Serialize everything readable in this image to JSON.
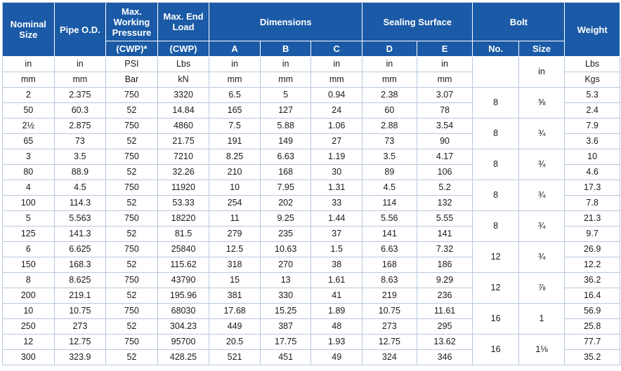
{
  "header": {
    "nominal_size": "Nominal Size",
    "pipe_od": "Pipe O.D.",
    "max_working_pressure": "Max. Working Pressure",
    "cwp_star": "(CWP)*",
    "max_end_load": "Max. End Load",
    "cwp": "(CWP)",
    "dimensions": "Dimensions",
    "sealing_surface": "Sealing Surface",
    "bolt": "Bolt",
    "weight": "Weight",
    "dim_a": "A",
    "dim_b": "B",
    "dim_c": "C",
    "seal_d": "D",
    "seal_e": "E",
    "bolt_no": "No.",
    "bolt_size": "Size"
  },
  "units_imperial": [
    "in",
    "in",
    "PSI",
    "Lbs",
    "in",
    "in",
    "in",
    "in",
    "in",
    "Lbs"
  ],
  "units_metric": [
    "mm",
    "mm",
    "Bar",
    "kN",
    "mm",
    "mm",
    "mm",
    "mm",
    "mm",
    "Kgs"
  ],
  "bolt_size_unit": "in",
  "rows": [
    {
      "imperial": [
        "2",
        "2.375",
        "750",
        "3320",
        "6.5",
        "5",
        "0.94",
        "2.38",
        "3.07",
        "5.3"
      ],
      "metric": [
        "50",
        "60.3",
        "52",
        "14.84",
        "165",
        "127",
        "24",
        "60",
        "78",
        "2.4"
      ],
      "bolt_no": "8",
      "bolt_size": "⅝"
    },
    {
      "imperial": [
        "2½",
        "2.875",
        "750",
        "4860",
        "7.5",
        "5.88",
        "1.06",
        "2.88",
        "3.54",
        "7.9"
      ],
      "metric": [
        "65",
        "73",
        "52",
        "21.75",
        "191",
        "149",
        "27",
        "73",
        "90",
        "3.6"
      ],
      "bolt_no": "8",
      "bolt_size": "¾"
    },
    {
      "imperial": [
        "3",
        "3.5",
        "750",
        "7210",
        "8.25",
        "6.63",
        "1.19",
        "3.5",
        "4.17",
        "10"
      ],
      "metric": [
        "80",
        "88.9",
        "52",
        "32.26",
        "210",
        "168",
        "30",
        "89",
        "106",
        "4.6"
      ],
      "bolt_no": "8",
      "bolt_size": "¾"
    },
    {
      "imperial": [
        "4",
        "4.5",
        "750",
        "11920",
        "10",
        "7.95",
        "1.31",
        "4.5",
        "5.2",
        "17.3"
      ],
      "metric": [
        "100",
        "114.3",
        "52",
        "53.33",
        "254",
        "202",
        "33",
        "114",
        "132",
        "7.8"
      ],
      "bolt_no": "8",
      "bolt_size": "¾"
    },
    {
      "imperial": [
        "5",
        "5.563",
        "750",
        "18220",
        "11",
        "9.25",
        "1.44",
        "5.56",
        "5.55",
        "21.3"
      ],
      "metric": [
        "125",
        "141.3",
        "52",
        "81.5",
        "279",
        "235",
        "37",
        "141",
        "141",
        "9.7"
      ],
      "bolt_no": "8",
      "bolt_size": "¾"
    },
    {
      "imperial": [
        "6",
        "6.625",
        "750",
        "25840",
        "12.5",
        "10.63",
        "1.5",
        "6.63",
        "7.32",
        "26.9"
      ],
      "metric": [
        "150",
        "168.3",
        "52",
        "115.62",
        "318",
        "270",
        "38",
        "168",
        "186",
        "12.2"
      ],
      "bolt_no": "12",
      "bolt_size": "¾"
    },
    {
      "imperial": [
        "8",
        "8.625",
        "750",
        "43790",
        "15",
        "13",
        "1.61",
        "8.63",
        "9.29",
        "36.2"
      ],
      "metric": [
        "200",
        "219.1",
        "52",
        "195.96",
        "381",
        "330",
        "41",
        "219",
        "236",
        "16.4"
      ],
      "bolt_no": "12",
      "bolt_size": "⅞"
    },
    {
      "imperial": [
        "10",
        "10.75",
        "750",
        "68030",
        "17.68",
        "15.25",
        "1.89",
        "10.75",
        "11.61",
        "56.9"
      ],
      "metric": [
        "250",
        "273",
        "52",
        "304.23",
        "449",
        "387",
        "48",
        "273",
        "295",
        "25.8"
      ],
      "bolt_no": "16",
      "bolt_size": "1"
    },
    {
      "imperial": [
        "12",
        "12.75",
        "750",
        "95700",
        "20.5",
        "17.75",
        "1.93",
        "12.75",
        "13.62",
        "77.7"
      ],
      "metric": [
        "300",
        "323.9",
        "52",
        "428.25",
        "521",
        "451",
        "49",
        "324",
        "346",
        "35.2"
      ],
      "bolt_no": "16",
      "bolt_size": "1⅛"
    }
  ]
}
